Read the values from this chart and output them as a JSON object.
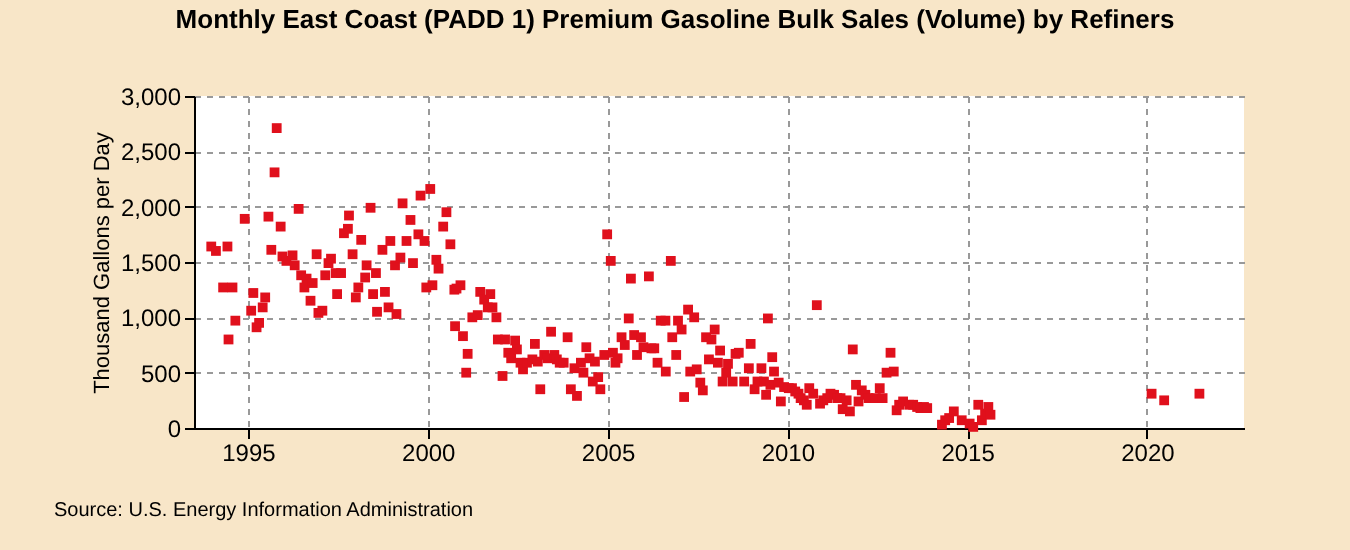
{
  "chart_data": {
    "type": "scatter",
    "title": "Monthly East Coast (PADD 1) Premium Gasoline Bulk Sales (Volume) by Refiners",
    "ylabel": "Thousand Gallons per Day",
    "annotations": [
      "Source: U.S. Energy Information Administration"
    ],
    "xlim": [
      1993.5,
      2022.7
    ],
    "xticks": [
      1995,
      2000,
      2005,
      2010,
      2015,
      2020
    ],
    "ylim": [
      0,
      3000
    ],
    "yticks": [
      0,
      500,
      {
        "value": 1000,
        "label": "1,000"
      },
      {
        "value": 1500,
        "label": "1,500"
      },
      {
        "value": 2000,
        "label": "2,000"
      },
      {
        "value": 2500,
        "label": "2,500"
      },
      {
        "value": 3000,
        "label": "3,000"
      }
    ],
    "grid": true,
    "marker": "square",
    "series": [
      {
        "color": "#e0101c",
        "x": [
          1993.98,
          1994.11,
          1994.31,
          1994.43,
          1994.46,
          1994.57,
          1994.65,
          1994.91,
          1995.09,
          1995.15,
          1995.24,
          1995.31,
          1995.41,
          1995.48,
          1995.57,
          1995.65,
          1995.74,
          1995.8,
          1995.91,
          1995.96,
          1996.07,
          1996.24,
          1996.3,
          1996.41,
          1996.48,
          1996.57,
          1996.63,
          1996.74,
          1996.8,
          1996.91,
          1996.96,
          1997.07,
          1997.15,
          1997.24,
          1997.31,
          1997.44,
          1997.48,
          1997.59,
          1997.67,
          1997.78,
          1997.81,
          1997.91,
          1998.0,
          1998.07,
          1998.15,
          1998.26,
          1998.3,
          1998.41,
          1998.48,
          1998.56,
          1998.59,
          1998.74,
          1998.81,
          1998.91,
          1998.96,
          1999.09,
          1999.13,
          1999.24,
          1999.3,
          1999.41,
          1999.52,
          1999.59,
          1999.74,
          1999.8,
          1999.91,
          1999.96,
          2000.07,
          2000.13,
          2000.24,
          2000.3,
          2000.43,
          2000.52,
          2000.63,
          2000.74,
          2000.76,
          2000.8,
          2000.91,
          2000.98,
          2001.11,
          2001.07,
          2001.24,
          2001.39,
          2001.46,
          2001.57,
          2001.67,
          2001.74,
          2001.8,
          2001.91,
          2001.95,
          2002.08,
          2002.15,
          2002.24,
          2002.32,
          2002.43,
          2002.48,
          2002.58,
          2002.65,
          2002.76,
          2002.91,
          2002.98,
          2003.06,
          2003.13,
          2003.24,
          2003.33,
          2003.43,
          2003.52,
          2003.59,
          2003.67,
          2003.78,
          2003.89,
          2003.98,
          2004.08,
          2004.15,
          2004.26,
          2004.33,
          2004.41,
          2004.5,
          2004.59,
          2004.65,
          2004.74,
          2004.8,
          2004.91,
          2004.99,
          2005.09,
          2005.15,
          2005.22,
          2005.28,
          2005.39,
          2005.48,
          2005.59,
          2005.65,
          2005.74,
          2005.82,
          2005.93,
          2006.0,
          2006.15,
          2006.22,
          2006.3,
          2006.39,
          2006.48,
          2006.61,
          2006.62,
          2006.76,
          2006.8,
          2006.91,
          2006.96,
          2007.06,
          2007.13,
          2007.24,
          2007.3,
          2007.41,
          2007.48,
          2007.58,
          2007.65,
          2007.74,
          2007.82,
          2007.89,
          2007.98,
          2008.07,
          2008.13,
          2008.2,
          2008.3,
          2008.35,
          2008.48,
          2008.56,
          2008.65,
          2008.8,
          2008.93,
          2008.98,
          2009.09,
          2009.17,
          2009.28,
          2009.35,
          2009.41,
          2009.46,
          2009.53,
          2009.58,
          2009.63,
          2009.76,
          2009.82,
          2009.91,
          2010.04,
          2010.13,
          2010.22,
          2010.31,
          2010.37,
          2010.46,
          2010.54,
          2010.61,
          2010.72,
          2010.82,
          2010.91,
          2011.0,
          2011.11,
          2011.2,
          2011.3,
          2011.39,
          2011.48,
          2011.54,
          2011.65,
          2011.74,
          2011.82,
          2011.91,
          2011.98,
          2012.07,
          2012.17,
          2012.26,
          2012.46,
          2012.57,
          2012.65,
          2012.76,
          2012.87,
          2012.96,
          2013.04,
          2013.11,
          2013.22,
          2013.39,
          2013.5,
          2013.61,
          2013.7,
          2013.8,
          2013.89,
          2014.3,
          2014.39,
          2014.5,
          2014.63,
          2014.85,
          2015.07,
          2015.17,
          2015.31,
          2015.41,
          2015.5,
          2015.59,
          2015.65,
          2020.13,
          2020.48,
          2021.46
        ],
        "values": [
          1640,
          1600,
          1270,
          1640,
          800,
          1270,
          970,
          1890,
          1060,
          1220,
          910,
          950,
          1090,
          1180,
          1910,
          1610,
          2310,
          2710,
          1820,
          1550,
          1510,
          1560,
          1470,
          1980,
          1380,
          1270,
          1350,
          1150,
          1310,
          1570,
          1040,
          1060,
          1380,
          1490,
          1530,
          1400,
          1210,
          1400,
          1760,
          1800,
          1920,
          1570,
          1180,
          1270,
          1700,
          1360,
          1470,
          1990,
          1210,
          1400,
          1050,
          1610,
          1230,
          1090,
          1690,
          1470,
          1030,
          1540,
          2030,
          1690,
          1880,
          1490,
          1750,
          2100,
          1690,
          1270,
          2160,
          1290,
          1520,
          1440,
          1820,
          1950,
          1660,
          1250,
          920,
          1260,
          1290,
          830,
          670,
          500,
          1000,
          1020,
          1230,
          1160,
          1090,
          1210,
          1090,
          1000,
          800,
          470,
          800,
          680,
          630,
          790,
          710,
          590,
          530,
          590,
          620,
          760,
          600,
          350,
          660,
          630,
          870,
          660,
          620,
          590,
          590,
          820,
          350,
          540,
          290,
          590,
          500,
          730,
          630,
          420,
          600,
          460,
          350,
          660,
          1750,
          1510,
          680,
          590,
          630,
          820,
          750,
          990,
          1350,
          840,
          660,
          820,
          730,
          1370,
          720,
          720,
          590,
          970,
          970,
          510,
          1510,
          820,
          660,
          970,
          890,
          280,
          1070,
          510,
          1000,
          530,
          410,
          340,
          820,
          620,
          800,
          890,
          590,
          700,
          420,
          500,
          580,
          420,
          670,
          680,
          420,
          540,
          760,
          350,
          420,
          540,
          420,
          300,
          990,
          390,
          640,
          510,
          410,
          240,
          370,
          360,
          360,
          330,
          310,
          270,
          250,
          210,
          360,
          310,
          1110,
          220,
          250,
          270,
          310,
          300,
          270,
          270,
          170,
          250,
          150,
          710,
          390,
          240,
          340,
          300,
          270,
          270,
          360,
          270,
          500,
          680,
          510,
          160,
          210,
          240,
          210,
          210,
          190,
          180,
          190,
          180,
          30,
          70,
          90,
          150,
          70,
          40,
          10,
          210,
          70,
          130,
          190,
          120,
          310,
          250,
          310
        ]
      }
    ]
  }
}
